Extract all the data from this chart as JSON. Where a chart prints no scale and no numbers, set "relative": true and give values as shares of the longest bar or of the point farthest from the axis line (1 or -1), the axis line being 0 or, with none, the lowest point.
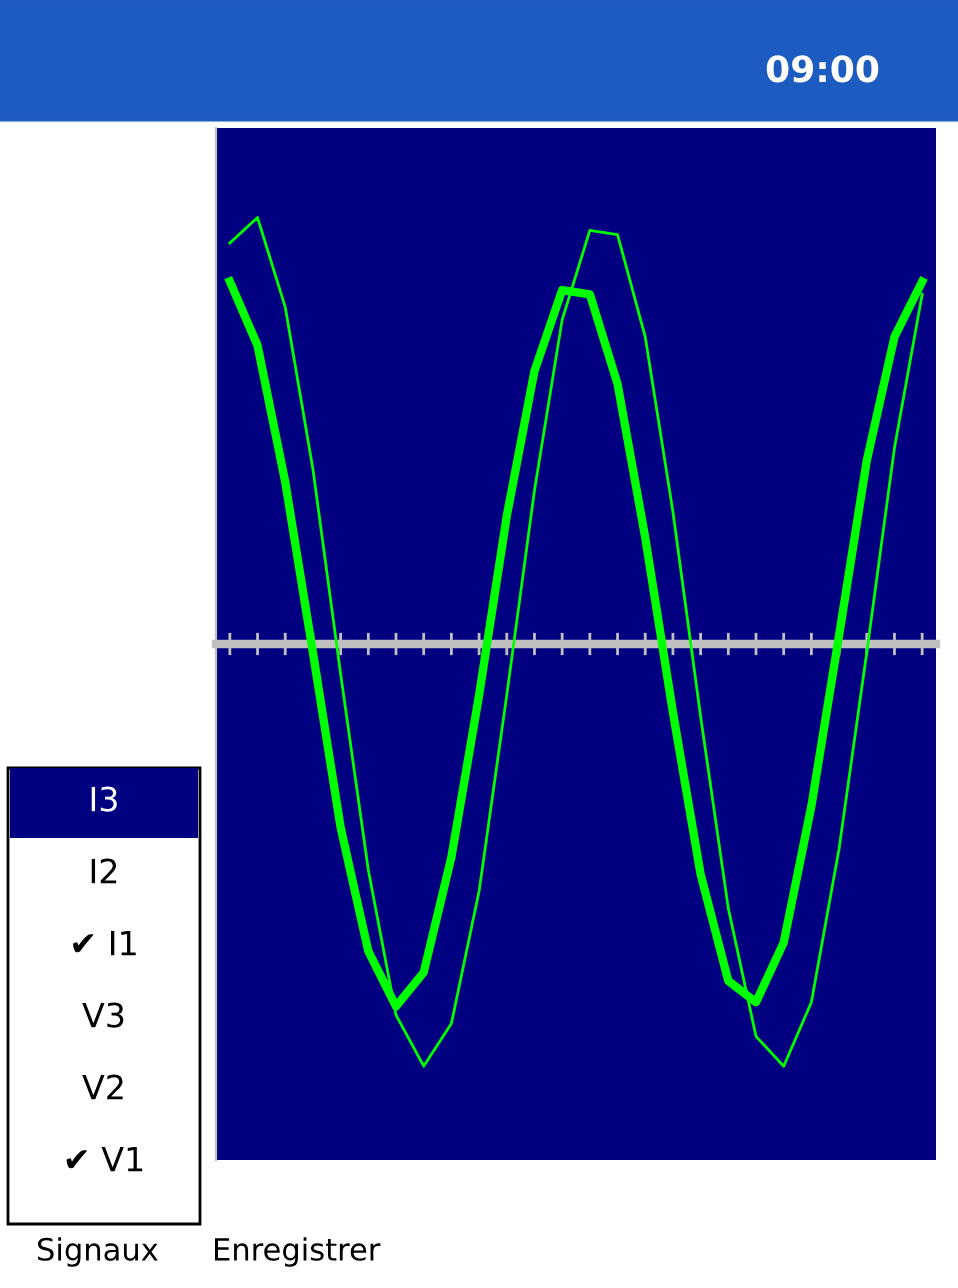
{
  "chart_data": {
    "type": "line",
    "relative": true,
    "categories": [
      null,
      null,
      null,
      null,
      null,
      null,
      null,
      null,
      null,
      null,
      null,
      null,
      null,
      null,
      null,
      null,
      null,
      null,
      null,
      null,
      null,
      null,
      null,
      null,
      null,
      null
    ],
    "series": [
      {
        "color": "#00ff00",
        "line_style": "solid",
        "values": [
          0.94,
          1,
          0.79,
          0.41,
          -0.07,
          -0.53,
          -0.87,
          -0.99,
          -0.89,
          -0.58,
          -0.12,
          0.36,
          0.76,
          0.97,
          0.96,
          0.72,
          0.31,
          -0.17,
          -0.62,
          -0.92,
          -0.99,
          -0.84,
          -0.48,
          -0.02,
          0.46,
          0.82
        ]
      },
      {
        "color": "#00ff00",
        "line_style": "solid",
        "values": [
          0.85,
          0.7,
          0.38,
          -0.02,
          -0.43,
          -0.72,
          -0.85,
          -0.77,
          -0.5,
          -0.12,
          0.3,
          0.64,
          0.83,
          0.82,
          0.61,
          0.25,
          -0.16,
          -0.54,
          -0.79,
          -0.84,
          -0.7,
          -0.38,
          0.02,
          0.43,
          0.72,
          0.85
        ]
      }
    ],
    "marker": "none",
    "grid": false,
    "legend": false,
    "annotations": [
      "09:00",
      "I3",
      "I2",
      "✔ I1",
      "V3",
      "V2",
      "✔ V1",
      "Signaux",
      "Enregistrer"
    ]
  }
}
